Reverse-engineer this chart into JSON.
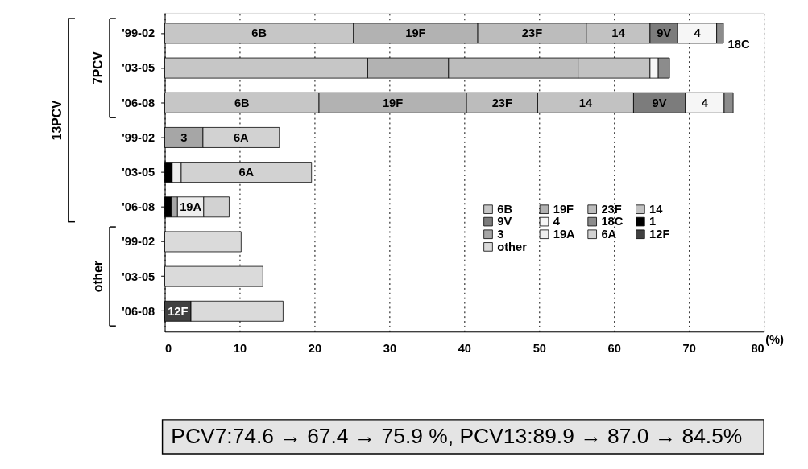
{
  "chart_data": {
    "type": "bar",
    "orientation": "horizontal",
    "stacked": true,
    "categories": [
      "'99-02",
      "'03-05",
      "'06-08",
      "'99-02",
      "'03-05",
      "'06-08",
      "'99-02",
      "'03-05",
      "'06-08"
    ],
    "series": [
      {
        "name": "6B",
        "color": "#c6c6c6",
        "values": [
          25.2,
          27.1,
          20.6,
          null,
          null,
          null,
          null,
          null,
          null
        ]
      },
      {
        "name": "19F",
        "color": "#b2b2b2",
        "values": [
          16.6,
          10.8,
          19.7,
          null,
          null,
          null,
          null,
          null,
          null
        ]
      },
      {
        "name": "23F",
        "color": "#bcbcbc",
        "values": [
          14.5,
          17.3,
          9.5,
          null,
          null,
          null,
          null,
          null,
          null
        ]
      },
      {
        "name": "14",
        "color": "#c2c2c2",
        "values": [
          8.5,
          9.6,
          12.8,
          null,
          null,
          null,
          null,
          null,
          null
        ]
      },
      {
        "name": "9V",
        "color": "#7c7c7c",
        "values": [
          3.7,
          null,
          6.9,
          null,
          null,
          null,
          null,
          null,
          null
        ]
      },
      {
        "name": "4",
        "color": "#f6f6f6",
        "values": [
          5.2,
          1.1,
          5.2,
          null,
          null,
          null,
          null,
          null,
          null
        ]
      },
      {
        "name": "18C",
        "color": "#8c8c8c",
        "values": [
          0.9,
          1.5,
          1.2,
          null,
          null,
          null,
          null,
          null,
          null
        ]
      },
      {
        "name": "1",
        "color": "#000000",
        "values": [
          null,
          null,
          null,
          null,
          1.0,
          0.9,
          null,
          null,
          null
        ]
      },
      {
        "name": "3",
        "color": "#a6a6a6",
        "values": [
          null,
          null,
          null,
          5.1,
          null,
          0.8,
          null,
          null,
          null
        ]
      },
      {
        "name": "19A",
        "color": "#eeeeee",
        "values": [
          null,
          null,
          null,
          null,
          1.2,
          3.5,
          null,
          null,
          null
        ]
      },
      {
        "name": "6A",
        "color": "#d2d2d2",
        "values": [
          null,
          null,
          null,
          10.2,
          17.4,
          3.4,
          null,
          null,
          null
        ]
      },
      {
        "name": "12F",
        "color": "#404040",
        "values": [
          null,
          null,
          null,
          null,
          null,
          null,
          null,
          null,
          3.5
        ]
      },
      {
        "name": "other",
        "color": "#dadada",
        "values": [
          null,
          null,
          null,
          null,
          null,
          null,
          10.2,
          13.1,
          12.3
        ]
      }
    ],
    "xlim": [
      0,
      80
    ],
    "xticks": [
      0,
      10,
      20,
      30,
      40,
      50,
      60,
      70,
      80
    ],
    "xlabel": "(%)",
    "grid": "x",
    "legend": "bottom right",
    "annotations": [
      "13PCV",
      "7PCV",
      "other",
      "PCV7:74.6 → 67.4 → 75.9 %,  PCV13:89.9 → 87.0 → 84.5%",
      "6B",
      "19F",
      "23F",
      "14",
      "9V",
      "4",
      "18C",
      "6B",
      "19F",
      "23F",
      "14",
      "9V",
      "4",
      "3",
      "6A",
      "6A",
      "19A",
      "12F"
    ]
  }
}
